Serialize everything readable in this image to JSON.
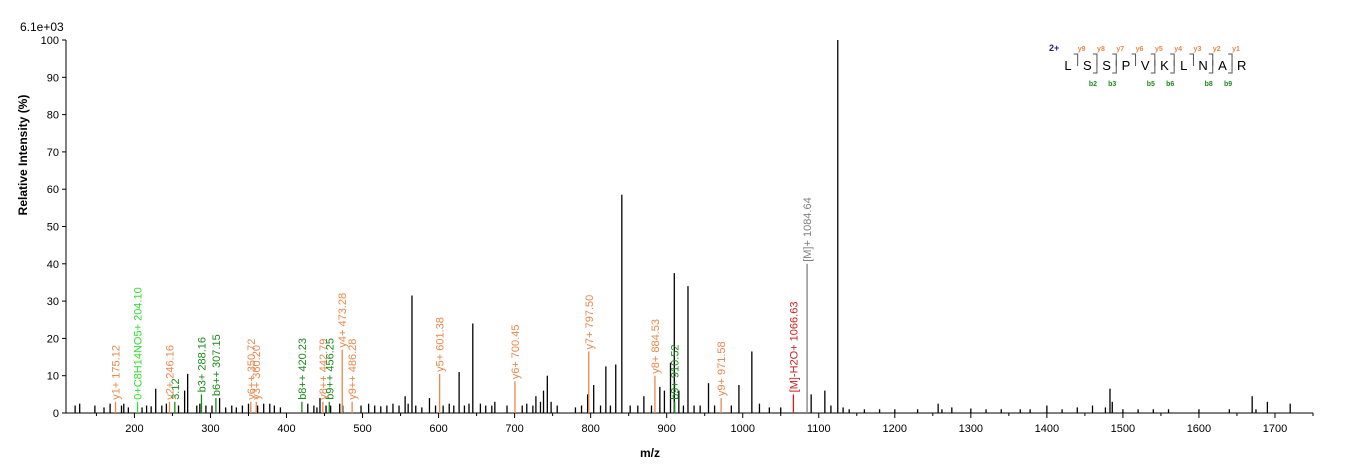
{
  "chart_data": {
    "type": "bar",
    "scale_label": "6.1e+03",
    "xlabel": "m/z",
    "ylabel": "Relative Intensity (%)",
    "xlim": [
      110,
      1750
    ],
    "ylim": [
      0,
      100
    ],
    "x_ticks": [
      "200",
      "300",
      "400",
      "500",
      "600",
      "700",
      "800",
      "900",
      "1000",
      "1100",
      "1200",
      "1300",
      "1400",
      "1500",
      "1600",
      "1700"
    ],
    "y_ticks": [
      "0",
      "10",
      "20",
      "30",
      "40",
      "50",
      "60",
      "70",
      "80",
      "90",
      "100"
    ],
    "colors": {
      "y": "#e8884a",
      "b": "#1b8a1b",
      "neutral": "#31e031",
      "precursor": "#808080",
      "precursor_loss": "#cc1f1f",
      "peak": "#000000",
      "charge": "#1a237e"
    },
    "peaks": [
      {
        "x": 122,
        "y": 2
      },
      {
        "x": 128,
        "y": 2.5
      },
      {
        "x": 148,
        "y": 2
      },
      {
        "x": 160,
        "y": 1.5
      },
      {
        "x": 168,
        "y": 2.5
      },
      {
        "x": 183,
        "y": 2
      },
      {
        "x": 186,
        "y": 2.5
      },
      {
        "x": 192,
        "y": 1.5
      },
      {
        "x": 210,
        "y": 1.5
      },
      {
        "x": 216,
        "y": 2
      },
      {
        "x": 222,
        "y": 1.8
      },
      {
        "x": 228,
        "y": 6.5
      },
      {
        "x": 236,
        "y": 2
      },
      {
        "x": 242,
        "y": 2.5
      },
      {
        "x": 258,
        "y": 2
      },
      {
        "x": 266,
        "y": 6
      },
      {
        "x": 270,
        "y": 10.5
      },
      {
        "x": 282,
        "y": 2
      },
      {
        "x": 286,
        "y": 2.5
      },
      {
        "x": 294,
        "y": 2
      },
      {
        "x": 302,
        "y": 2
      },
      {
        "x": 312,
        "y": 4
      },
      {
        "x": 320,
        "y": 1.5
      },
      {
        "x": 328,
        "y": 2
      },
      {
        "x": 334,
        "y": 1.5
      },
      {
        "x": 342,
        "y": 2
      },
      {
        "x": 350,
        "y": 2.5
      },
      {
        "x": 362,
        "y": 2
      },
      {
        "x": 370,
        "y": 2.5
      },
      {
        "x": 378,
        "y": 2.5
      },
      {
        "x": 384,
        "y": 2
      },
      {
        "x": 392,
        "y": 1.5
      },
      {
        "x": 428,
        "y": 2.5
      },
      {
        "x": 436,
        "y": 2
      },
      {
        "x": 440,
        "y": 1.5
      },
      {
        "x": 444,
        "y": 4
      },
      {
        "x": 452,
        "y": 2
      },
      {
        "x": 458,
        "y": 2
      },
      {
        "x": 470,
        "y": 2.5
      },
      {
        "x": 474,
        "y": 2
      },
      {
        "x": 498,
        "y": 2
      },
      {
        "x": 508,
        "y": 2.5
      },
      {
        "x": 516,
        "y": 2
      },
      {
        "x": 524,
        "y": 1.8
      },
      {
        "x": 532,
        "y": 2
      },
      {
        "x": 540,
        "y": 2.5
      },
      {
        "x": 548,
        "y": 2
      },
      {
        "x": 556,
        "y": 4.5
      },
      {
        "x": 560,
        "y": 2.5
      },
      {
        "x": 565,
        "y": 31.5
      },
      {
        "x": 570,
        "y": 2
      },
      {
        "x": 578,
        "y": 1.5
      },
      {
        "x": 588,
        "y": 4
      },
      {
        "x": 596,
        "y": 2
      },
      {
        "x": 606,
        "y": 2
      },
      {
        "x": 614,
        "y": 2.5
      },
      {
        "x": 620,
        "y": 2
      },
      {
        "x": 627,
        "y": 11
      },
      {
        "x": 634,
        "y": 2
      },
      {
        "x": 640,
        "y": 2.5
      },
      {
        "x": 645,
        "y": 24
      },
      {
        "x": 655,
        "y": 2.5
      },
      {
        "x": 662,
        "y": 2
      },
      {
        "x": 670,
        "y": 2
      },
      {
        "x": 674,
        "y": 3
      },
      {
        "x": 690,
        "y": 2
      },
      {
        "x": 710,
        "y": 2
      },
      {
        "x": 716,
        "y": 2.5
      },
      {
        "x": 724,
        "y": 2
      },
      {
        "x": 728,
        "y": 4.5
      },
      {
        "x": 734,
        "y": 3
      },
      {
        "x": 738,
        "y": 6
      },
      {
        "x": 743,
        "y": 10
      },
      {
        "x": 748,
        "y": 3
      },
      {
        "x": 756,
        "y": 2
      },
      {
        "x": 780,
        "y": 1.5
      },
      {
        "x": 788,
        "y": 2
      },
      {
        "x": 796,
        "y": 5
      },
      {
        "x": 804,
        "y": 7.5
      },
      {
        "x": 813,
        "y": 2
      },
      {
        "x": 820,
        "y": 12.5
      },
      {
        "x": 826,
        "y": 2
      },
      {
        "x": 833,
        "y": 13
      },
      {
        "x": 841,
        "y": 58.5
      },
      {
        "x": 852,
        "y": 2
      },
      {
        "x": 862,
        "y": 2
      },
      {
        "x": 870,
        "y": 4.5
      },
      {
        "x": 880,
        "y": 2
      },
      {
        "x": 891,
        "y": 7
      },
      {
        "x": 897,
        "y": 6
      },
      {
        "x": 905,
        "y": 13.5
      },
      {
        "x": 910,
        "y": 37.5
      },
      {
        "x": 916,
        "y": 6
      },
      {
        "x": 922,
        "y": 2
      },
      {
        "x": 928,
        "y": 34
      },
      {
        "x": 936,
        "y": 2
      },
      {
        "x": 944,
        "y": 2
      },
      {
        "x": 955,
        "y": 8
      },
      {
        "x": 963,
        "y": 2
      },
      {
        "x": 985,
        "y": 2
      },
      {
        "x": 995,
        "y": 7.5
      },
      {
        "x": 1012,
        "y": 16.5
      },
      {
        "x": 1022,
        "y": 2.5
      },
      {
        "x": 1035,
        "y": 1.5
      },
      {
        "x": 1050,
        "y": 1.5
      },
      {
        "x": 1090,
        "y": 5
      },
      {
        "x": 1108,
        "y": 6
      },
      {
        "x": 1116,
        "y": 2
      },
      {
        "x": 1125,
        "y": 100
      },
      {
        "x": 1132,
        "y": 1.5
      },
      {
        "x": 1140,
        "y": 1
      },
      {
        "x": 1160,
        "y": 1
      },
      {
        "x": 1180,
        "y": 1
      },
      {
        "x": 1200,
        "y": 1
      },
      {
        "x": 1230,
        "y": 1
      },
      {
        "x": 1257,
        "y": 2.5
      },
      {
        "x": 1262,
        "y": 1
      },
      {
        "x": 1275,
        "y": 1.5
      },
      {
        "x": 1300,
        "y": 1.2
      },
      {
        "x": 1320,
        "y": 1
      },
      {
        "x": 1340,
        "y": 1
      },
      {
        "x": 1365,
        "y": 1
      },
      {
        "x": 1378,
        "y": 1
      },
      {
        "x": 1400,
        "y": 2
      },
      {
        "x": 1420,
        "y": 1
      },
      {
        "x": 1440,
        "y": 1.5
      },
      {
        "x": 1460,
        "y": 2
      },
      {
        "x": 1477,
        "y": 1.5
      },
      {
        "x": 1483,
        "y": 6.5
      },
      {
        "x": 1486,
        "y": 3
      },
      {
        "x": 1500,
        "y": 1
      },
      {
        "x": 1520,
        "y": 1
      },
      {
        "x": 1540,
        "y": 1
      },
      {
        "x": 1560,
        "y": 1
      },
      {
        "x": 1600,
        "y": 1
      },
      {
        "x": 1640,
        "y": 1
      },
      {
        "x": 1670,
        "y": 4.5
      },
      {
        "x": 1675,
        "y": 1
      },
      {
        "x": 1690,
        "y": 3
      },
      {
        "x": 1720,
        "y": 2.5
      }
    ],
    "annotations": [
      {
        "x": 175.12,
        "y": 3,
        "label": "y1+ 175.12",
        "series": "y"
      },
      {
        "x": 204.1,
        "y": 3,
        "label": "0+C8H14NO5+ 204.10",
        "series": "neutral"
      },
      {
        "x": 246.16,
        "y": 3,
        "label": "y2+ 246.16",
        "series": "y"
      },
      {
        "x": 253.12,
        "y": 3,
        "label": "3.12",
        "series": "b"
      },
      {
        "x": 288.16,
        "y": 5,
        "label": "b3+ 288.16",
        "series": "b"
      },
      {
        "x": 307.15,
        "y": 4,
        "label": "b6++ 307.15",
        "series": "b"
      },
      {
        "x": 353,
        "y": 3,
        "label": "y6++ 350.72",
        "series": "y"
      },
      {
        "x": 360.2,
        "y": 3,
        "label": "y3+ 360.20",
        "series": "y"
      },
      {
        "x": 420.23,
        "y": 3,
        "label": "b8++ 420.23",
        "series": "b"
      },
      {
        "x": 447.79,
        "y": 3,
        "label": "y8++ 442.79",
        "series": "y"
      },
      {
        "x": 456.25,
        "y": 3,
        "label": "b9++ 456.25",
        "series": "b"
      },
      {
        "x": 473.28,
        "y": 17,
        "label": "y4+ 473.28",
        "series": "y"
      },
      {
        "x": 486.28,
        "y": 3,
        "label": "y9++ 486.28",
        "series": "y"
      },
      {
        "x": 601.38,
        "y": 10.5,
        "label": "y5+ 601.38",
        "series": "y"
      },
      {
        "x": 700.45,
        "y": 8.5,
        "label": "y6+ 700.45",
        "series": "y"
      },
      {
        "x": 797.5,
        "y": 16.5,
        "label": "y7+ 797.50",
        "series": "y"
      },
      {
        "x": 884.53,
        "y": 10,
        "label": "y8+ 884.53",
        "series": "y"
      },
      {
        "x": 910.52,
        "y": 3,
        "label": "b9+ 910.52",
        "series": "b"
      },
      {
        "x": 971.58,
        "y": 4,
        "label": "y9+ 971.58",
        "series": "y"
      },
      {
        "x": 1066.63,
        "y": 5,
        "label": "[M]-H2O+ 1066.63",
        "series": "precursor_loss"
      },
      {
        "x": 1084.64,
        "y": 40,
        "label": "[M]+ 1084.64",
        "series": "precursor"
      }
    ],
    "sequence": {
      "charge": "2+",
      "residues": [
        "L",
        "S",
        "S",
        "P",
        "V",
        "K",
        "L",
        "N",
        "A",
        "R"
      ],
      "y_ions": [
        {
          "after": 1,
          "label": "y9"
        },
        {
          "after": 2,
          "label": "y8"
        },
        {
          "after": 3,
          "label": "y7"
        },
        {
          "after": 4,
          "label": "y6"
        },
        {
          "after": 5,
          "label": "y5"
        },
        {
          "after": 6,
          "label": "y4"
        },
        {
          "after": 7,
          "label": "y3"
        },
        {
          "after": 8,
          "label": "y2"
        },
        {
          "after": 9,
          "label": "y1"
        }
      ],
      "b_ions": [
        {
          "after": 2,
          "label": "b2"
        },
        {
          "after": 3,
          "label": "b3"
        },
        {
          "after": 5,
          "label": "b5"
        },
        {
          "after": 6,
          "label": "b6"
        },
        {
          "after": 8,
          "label": "b8"
        },
        {
          "after": 9,
          "label": "b9"
        }
      ]
    }
  }
}
